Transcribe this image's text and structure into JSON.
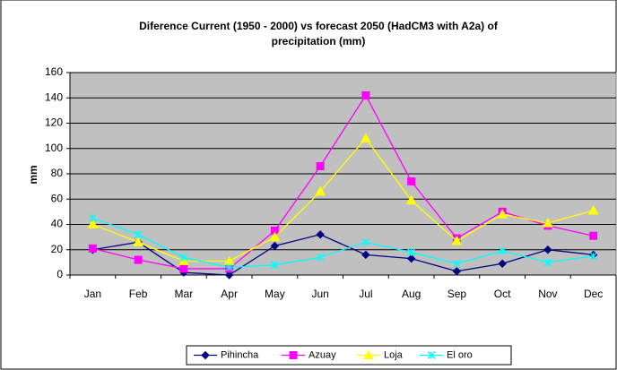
{
  "chart_data": {
    "type": "line",
    "title": [
      "Diference Current (1950 - 2000) vs forecast 2050 (HadCM3 with A2a) of",
      "precipitation (mm)"
    ],
    "y_label": "mm",
    "categories": [
      "Jan",
      "Feb",
      "Mar",
      "Apr",
      "May",
      "Jun",
      "Jul",
      "Aug",
      "Sep",
      "Oct",
      "Nov",
      "Dec"
    ],
    "series": [
      {
        "name": "Pihincha",
        "color": "#000080",
        "marker": "diamond",
        "values": [
          20,
          26,
          2,
          0,
          23,
          32,
          16,
          13,
          3,
          9,
          20,
          16
        ]
      },
      {
        "name": "Azuay",
        "color": "#ff00ff",
        "marker": "square",
        "values": [
          21,
          12,
          5,
          5,
          35,
          86,
          142,
          74,
          29,
          50,
          39,
          31
        ]
      },
      {
        "name": "Loja",
        "color": "#ffff00",
        "marker": "triangle",
        "values": [
          40,
          26,
          11,
          11,
          30,
          66,
          108,
          59,
          27,
          48,
          41,
          51
        ]
      },
      {
        "name": "El oro",
        "color": "#00ffff",
        "marker": "star",
        "values": [
          45,
          32,
          14,
          6,
          8,
          14,
          26,
          18,
          9,
          19,
          10,
          15
        ]
      }
    ],
    "ylim": [
      0,
      160
    ],
    "yticks": [
      0,
      20,
      40,
      60,
      80,
      100,
      120,
      140,
      160
    ],
    "grid": true,
    "legend": "bottom"
  }
}
